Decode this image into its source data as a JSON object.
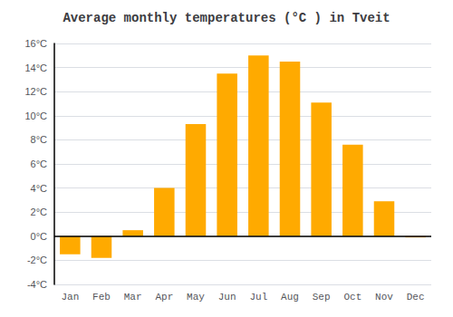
{
  "chart_data": {
    "type": "bar",
    "title": "Average monthly temperatures (°C ) in Tveit",
    "categories": [
      "Jan",
      "Feb",
      "Mar",
      "Apr",
      "May",
      "Jun",
      "Jul",
      "Aug",
      "Sep",
      "Oct",
      "Nov",
      "Dec"
    ],
    "values": [
      -1.5,
      -1.8,
      0.5,
      4.0,
      9.3,
      13.5,
      15.0,
      14.5,
      11.1,
      7.6,
      2.9,
      -0.1
    ],
    "color": "#FFAA00",
    "ylim": [
      -4,
      16
    ],
    "yticks": [
      {
        "value": -4,
        "label": "-4°C"
      },
      {
        "value": -2,
        "label": "-2°C"
      },
      {
        "value": 0,
        "label": "0°C"
      },
      {
        "value": 2,
        "label": "2°C"
      },
      {
        "value": 4,
        "label": "4°C"
      },
      {
        "value": 6,
        "label": "6°C"
      },
      {
        "value": 8,
        "label": "8°C"
      },
      {
        "value": 10,
        "label": "10°C"
      },
      {
        "value": 12,
        "label": "12°C"
      },
      {
        "value": 14,
        "label": "14°C"
      },
      {
        "value": 16,
        "label": "16°C"
      }
    ],
    "grid": true
  }
}
